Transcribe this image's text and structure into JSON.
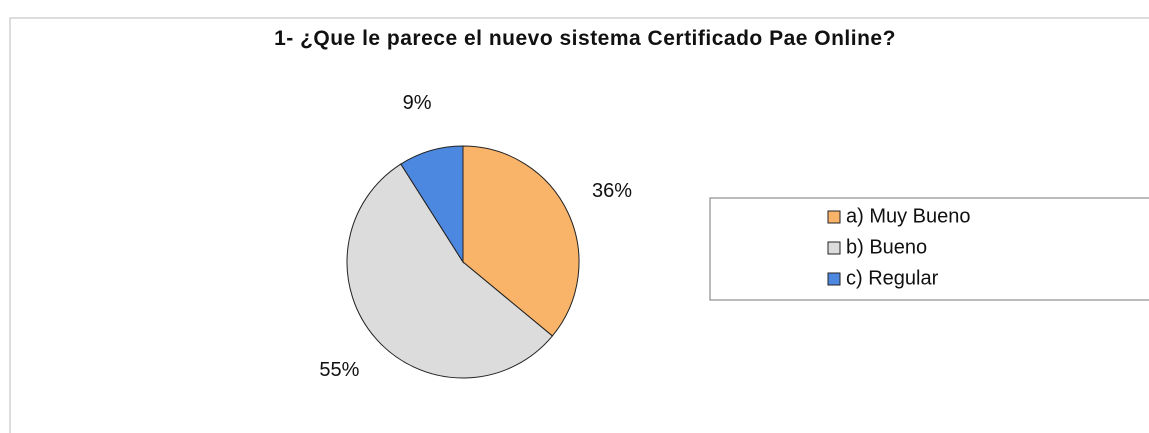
{
  "chart_data": {
    "type": "pie",
    "title": "1- ¿Que le parece el nuevo sistema Certificado Pae Online?",
    "categories": [
      "a) Muy Bueno",
      "b) Bueno",
      "c) Regular"
    ],
    "values": [
      36,
      55,
      9
    ],
    "value_labels": [
      "36%",
      "55%",
      "9%"
    ],
    "colors": [
      "#f9b46a",
      "#dcdcdc",
      "#4d88e0"
    ],
    "legend": "right"
  }
}
